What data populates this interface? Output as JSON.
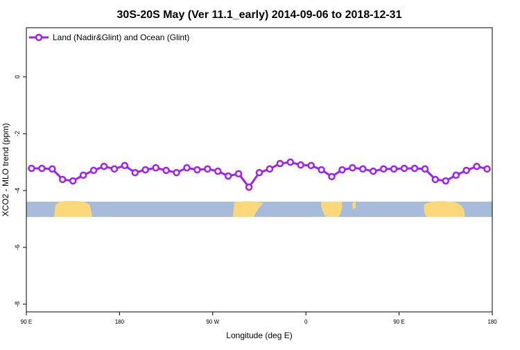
{
  "chart_data": {
    "type": "line",
    "title": "30S-20S May (Ver 11.1_early)   2014-09-06 to 2018-12-31",
    "x_label": "Longitude (deg E)",
    "y_label": "XCO2 - MLO trend (ppm)",
    "xlim": [
      90,
      540
    ],
    "xticks": [
      {
        "value": 90,
        "label": "90 E"
      },
      {
        "value": 180,
        "label": "180"
      },
      {
        "value": 270,
        "label": "90 W"
      },
      {
        "value": 360,
        "label": "0"
      },
      {
        "value": 450,
        "label": "90 E"
      },
      {
        "value": 540,
        "label": "180"
      }
    ],
    "ylim": [
      -8.27,
      1.73
    ],
    "yticks": [
      0,
      -2,
      -4,
      -6,
      -8
    ],
    "legend": "top-left",
    "x": [
      95,
      105,
      115,
      125,
      135,
      145,
      155,
      165,
      175,
      185,
      195,
      205,
      215,
      225,
      235,
      245,
      255,
      265,
      275,
      285,
      295,
      305,
      315,
      325,
      335,
      345,
      355,
      365,
      375,
      385,
      395,
      405,
      415,
      425,
      435,
      445,
      455,
      465,
      475,
      485,
      495,
      505,
      515,
      525,
      535
    ],
    "series": [
      {
        "name": "Land (Nadir&Glint) and Ocean (Glint)",
        "color": "#a020f0",
        "values": [
          -3.22,
          -3.22,
          -3.24,
          -3.61,
          -3.66,
          -3.46,
          -3.29,
          -3.15,
          -3.24,
          -3.12,
          -3.37,
          -3.27,
          -3.2,
          -3.29,
          -3.37,
          -3.2,
          -3.27,
          -3.24,
          -3.32,
          -3.49,
          -3.41,
          -3.88,
          -3.37,
          -3.24,
          -3.05,
          -3.0,
          -3.1,
          -3.12,
          -3.27,
          -3.51,
          -3.27,
          -3.2,
          -3.24,
          -3.32,
          -3.24,
          -3.24,
          -3.22,
          -3.22,
          -3.24,
          -3.61,
          -3.66,
          -3.46,
          -3.29,
          -3.15,
          -3.24
        ]
      }
    ]
  }
}
